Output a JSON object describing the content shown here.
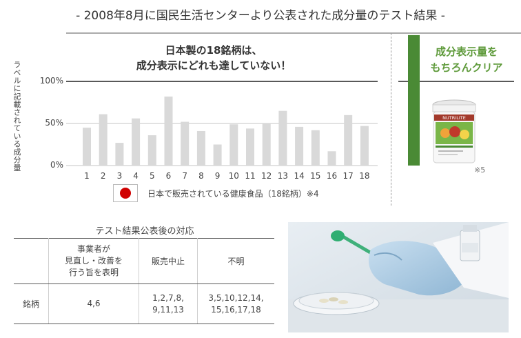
{
  "page": {
    "title": "- 2008年8月に国民生活センターより公表された成分量のテスト結果 -"
  },
  "chart_data": {
    "type": "bar",
    "ylabel": "ラベルに記載されている成分量",
    "headline_lines": [
      "日本製の18銘柄は、",
      "成分表示にどれも達していない！"
    ],
    "yticks": [
      {
        "value": 0,
        "label": "0%"
      },
      {
        "value": 50,
        "label": "50%"
      },
      {
        "value": 100,
        "label": "100%"
      }
    ],
    "ylim": [
      0,
      100
    ],
    "categories": [
      "1",
      "2",
      "3",
      "4",
      "5",
      "6",
      "7",
      "8",
      "9",
      "10",
      "11",
      "12",
      "13",
      "14",
      "15",
      "16",
      "17",
      "18"
    ],
    "values": [
      45,
      61,
      27,
      56,
      36,
      82,
      52,
      41,
      25,
      49,
      44,
      50,
      65,
      46,
      42,
      17,
      60,
      47
    ],
    "bar_color": "#d9d9d9",
    "legend": {
      "label": "日本で販売されている健康食品（18銘柄）※4"
    },
    "comparison": {
      "lines": [
        "成分表示量を",
        "もちろんクリア"
      ],
      "value": 155,
      "color": "#4a8a35",
      "note": "※5",
      "product_brand": "NUTRILITE"
    }
  },
  "table": {
    "title": "テスト結果公表後の対応",
    "headers": [
      "",
      [
        "事業者が",
        "見直し・改善を",
        "行う旨を表明"
      ],
      [
        "販売中止"
      ],
      [
        "不明"
      ]
    ],
    "row": {
      "label": "銘柄",
      "cells": [
        [
          "4,6"
        ],
        [
          "1,2,7,8,",
          "9,11,13"
        ],
        [
          "3,5,10,12,14,",
          "15,16,17,18"
        ]
      ]
    }
  },
  "colors": {
    "accent_green": "#5e9a3a",
    "flag_red": "#d00000"
  }
}
